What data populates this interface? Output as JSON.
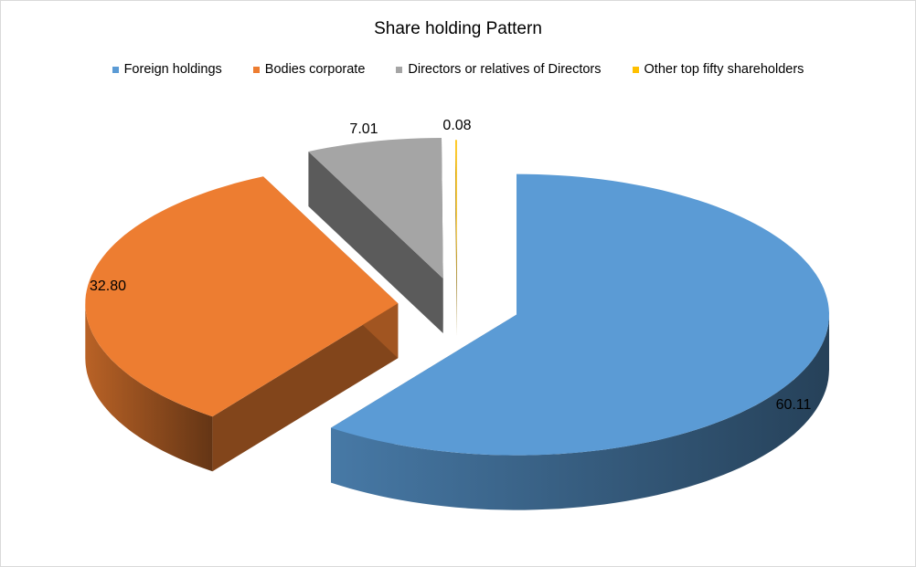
{
  "chart_data": {
    "type": "pie",
    "style": "3d-exploded",
    "title": "Share holding Pattern",
    "legend_position": "top",
    "series": [
      {
        "name": "Foreign holdings",
        "value": 60.11,
        "label": "60.11",
        "color": "#5B9BD5"
      },
      {
        "name": "Bodies corporate",
        "value": 32.8,
        "label": "32.80",
        "color": "#ED7D31"
      },
      {
        "name": "Directors or relatives of Directors",
        "value": 7.01,
        "label": "7.01",
        "color": "#A5A5A5"
      },
      {
        "name": "Other top fifty shareholders",
        "value": 0.08,
        "label": "0.08",
        "color": "#FFC000"
      }
    ]
  }
}
